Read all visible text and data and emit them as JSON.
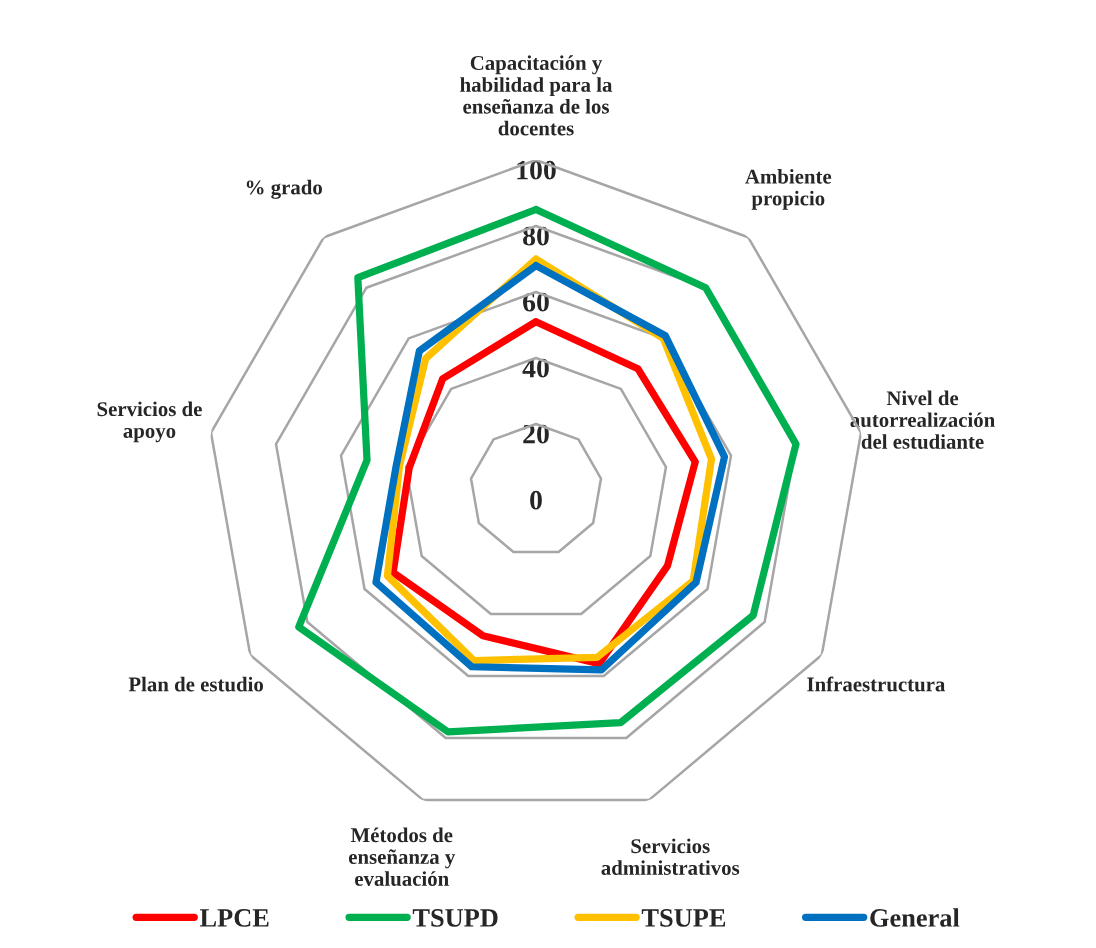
{
  "chart_data": {
    "type": "radar",
    "categories": [
      "Capacitación y\nhabilidad para la\nenseñanza de los\ndocentes",
      "Ambiente\npropicio",
      "Nivel de\nautorrealización\ndel estudiante",
      "Infraestructura",
      "Servicios\nadministrativos",
      "Métodos de\nenseñanza y\nevaluación",
      "Plan de estudio",
      "Servicios de\napoyo",
      "% grado"
    ],
    "series": [
      {
        "name": "LPCE",
        "color": "#ff0000",
        "values": [
          51,
          48,
          49,
          46,
          56,
          47,
          50,
          39,
          44
        ]
      },
      {
        "name": "TSUPD",
        "color": "#00b050",
        "values": [
          85,
          80,
          80,
          76,
          75,
          78,
          83,
          52,
          84
        ]
      },
      {
        "name": "TSUPE",
        "color": "#ffc000",
        "values": [
          70,
          60,
          54,
          55,
          54,
          55,
          52,
          42,
          52
        ]
      },
      {
        "name": "General",
        "color": "#0070c0",
        "values": [
          68,
          61,
          58,
          56,
          58,
          57,
          56,
          43,
          55
        ]
      }
    ],
    "ylim": [
      0,
      100
    ],
    "yticks": [
      0,
      20,
      40,
      60,
      80,
      100
    ],
    "grid": true,
    "legend": "bottom",
    "line_style": "solid",
    "marker": "none"
  }
}
